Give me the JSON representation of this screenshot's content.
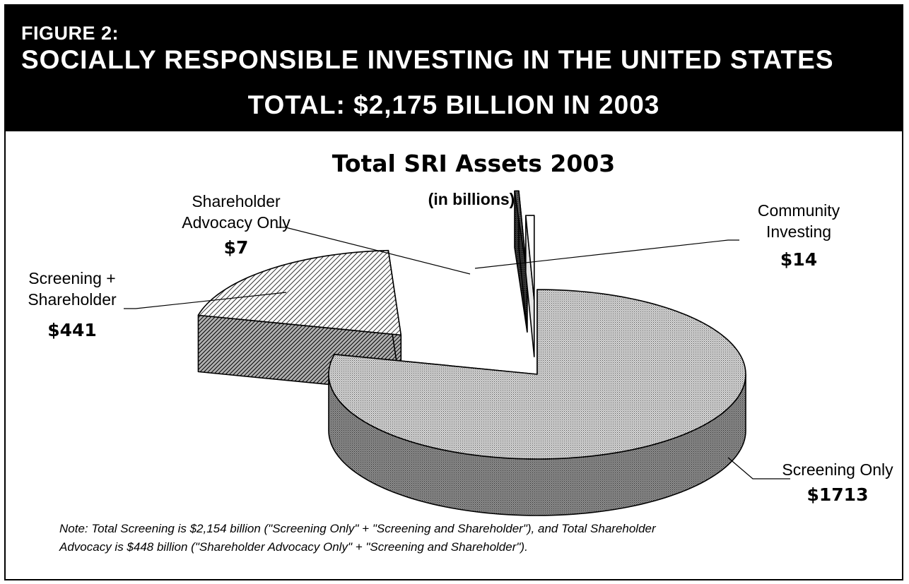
{
  "figure": {
    "label": "FIGURE 2:",
    "title": "SOCIALLY RESPONSIBLE INVESTING IN THE UNITED STATES",
    "subtitle": "TOTAL: $2,175 BILLION IN 2003"
  },
  "chart_data": {
    "type": "pie",
    "style": "3d-exploded",
    "title": "Total SRI Assets 2003",
    "subtitle": "(in billions)",
    "unit": "billions of dollars",
    "legend": "none (slices labelled directly)",
    "slices": [
      {
        "name": "Screening Only",
        "value": 1713,
        "value_label": "$1713",
        "label_lines": [
          "Screening Only"
        ],
        "pattern": "dots"
      },
      {
        "name": "Screening + Shareholder",
        "value": 441,
        "value_label": "$441",
        "label_lines": [
          "Screening +",
          "Shareholder"
        ],
        "pattern": "hatch"
      },
      {
        "name": "Shareholder Advocacy Only",
        "value": 7,
        "value_label": "$7",
        "label_lines": [
          "Shareholder",
          "Advocacy Only"
        ],
        "pattern": "dark"
      },
      {
        "name": "Community Investing",
        "value": 14,
        "value_label": "$14",
        "label_lines": [
          "Community",
          "Investing"
        ],
        "pattern": "white"
      }
    ]
  },
  "note": {
    "line1": "Note: Total Screening is $2,154 billion (\"Screening Only\" + \"Screening and Shareholder\"), and Total Shareholder",
    "line2": "Advocacy is $448 billion (\"Shareholder Advocacy Only\" + \"Screening and Shareholder\")."
  }
}
